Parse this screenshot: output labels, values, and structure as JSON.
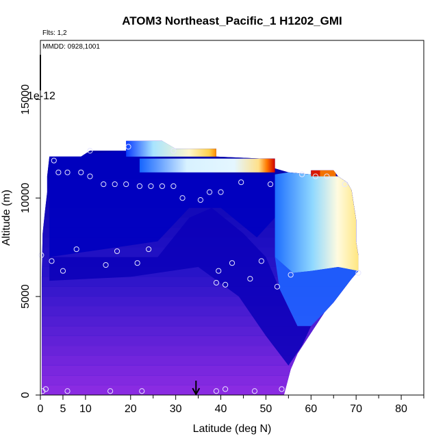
{
  "chart_data": {
    "type": "heatmap",
    "title": "ATOM3 Northeast_Pacific_1 H1202_GMI",
    "xlabel": "Latitude (deg N)",
    "ylabel": "Altitude (m)",
    "annotations": {
      "flights": "Flts: 1,2",
      "dates": "MMDD: 0928,1001",
      "scale": "1e-12"
    },
    "xlim": [
      0,
      85
    ],
    "ylim": [
      0,
      18000
    ],
    "x_tick_labels": [
      "0",
      "5",
      "10",
      "20",
      "30",
      "40",
      "50",
      "60",
      "70",
      "80"
    ],
    "x_ticks": [
      0,
      5,
      10,
      20,
      30,
      40,
      50,
      60,
      70,
      80
    ],
    "y_tick_labels": [
      "0",
      "5000",
      "10000",
      "15000"
    ],
    "y_ticks": [
      0,
      5000,
      10000,
      15000
    ],
    "marker_latitude": 34.5,
    "grid": false,
    "colormap": [
      "#8a2be2",
      "#3a1fd0",
      "#0000b8",
      "#1e90ff",
      "#e0f7ff",
      "#fff9c4",
      "#ff8c00",
      "#cc0000"
    ],
    "sample_points": [
      {
        "lat": 0.2,
        "alt": 7100
      },
      {
        "lat": 2.5,
        "alt": 6800
      },
      {
        "lat": 5,
        "alt": 6300
      },
      {
        "lat": 8,
        "alt": 7400
      },
      {
        "lat": 14.5,
        "alt": 6600
      },
      {
        "lat": 17,
        "alt": 7300
      },
      {
        "lat": 21.5,
        "alt": 6700
      },
      {
        "lat": 24,
        "alt": 7400
      },
      {
        "lat": 3,
        "alt": 11900
      },
      {
        "lat": 4,
        "alt": 11300
      },
      {
        "lat": 6,
        "alt": 11300
      },
      {
        "lat": 9,
        "alt": 11300
      },
      {
        "lat": 11,
        "alt": 11100
      },
      {
        "lat": 11,
        "alt": 12400
      },
      {
        "lat": 19.5,
        "alt": 12600
      },
      {
        "lat": 14,
        "alt": 10700
      },
      {
        "lat": 16.5,
        "alt": 10700
      },
      {
        "lat": 19,
        "alt": 10700
      },
      {
        "lat": 22,
        "alt": 10600
      },
      {
        "lat": 24.5,
        "alt": 10600
      },
      {
        "lat": 27,
        "alt": 10600
      },
      {
        "lat": 29.5,
        "alt": 10600
      },
      {
        "lat": 29.5,
        "alt": 12400
      },
      {
        "lat": 31.5,
        "alt": 10000
      },
      {
        "lat": 35.5,
        "alt": 9900
      },
      {
        "lat": 37.5,
        "alt": 10300
      },
      {
        "lat": 40,
        "alt": 10300
      },
      {
        "lat": 44.5,
        "alt": 10800
      },
      {
        "lat": 51,
        "alt": 10700
      },
      {
        "lat": 58,
        "alt": 11200
      },
      {
        "lat": 61,
        "alt": 11100
      },
      {
        "lat": 63.5,
        "alt": 11100
      },
      {
        "lat": 67.5,
        "alt": 10700
      },
      {
        "lat": 39,
        "alt": 5700
      },
      {
        "lat": 39.5,
        "alt": 6300
      },
      {
        "lat": 41,
        "alt": 5600
      },
      {
        "lat": 42.5,
        "alt": 6700
      },
      {
        "lat": 46.5,
        "alt": 5900
      },
      {
        "lat": 49,
        "alt": 6800
      },
      {
        "lat": 52.5,
        "alt": 5500
      },
      {
        "lat": 55.5,
        "alt": 6100
      },
      {
        "lat": 70.5,
        "alt": 6200
      },
      {
        "lat": 0.5,
        "alt": 200
      },
      {
        "lat": 1.2,
        "alt": 300
      },
      {
        "lat": 6,
        "alt": 200
      },
      {
        "lat": 15.5,
        "alt": 200
      },
      {
        "lat": 22.5,
        "alt": 200
      },
      {
        "lat": 39,
        "alt": 200
      },
      {
        "lat": 41,
        "alt": 300
      },
      {
        "lat": 47.5,
        "alt": 200
      },
      {
        "lat": 53.5,
        "alt": 300
      }
    ]
  }
}
